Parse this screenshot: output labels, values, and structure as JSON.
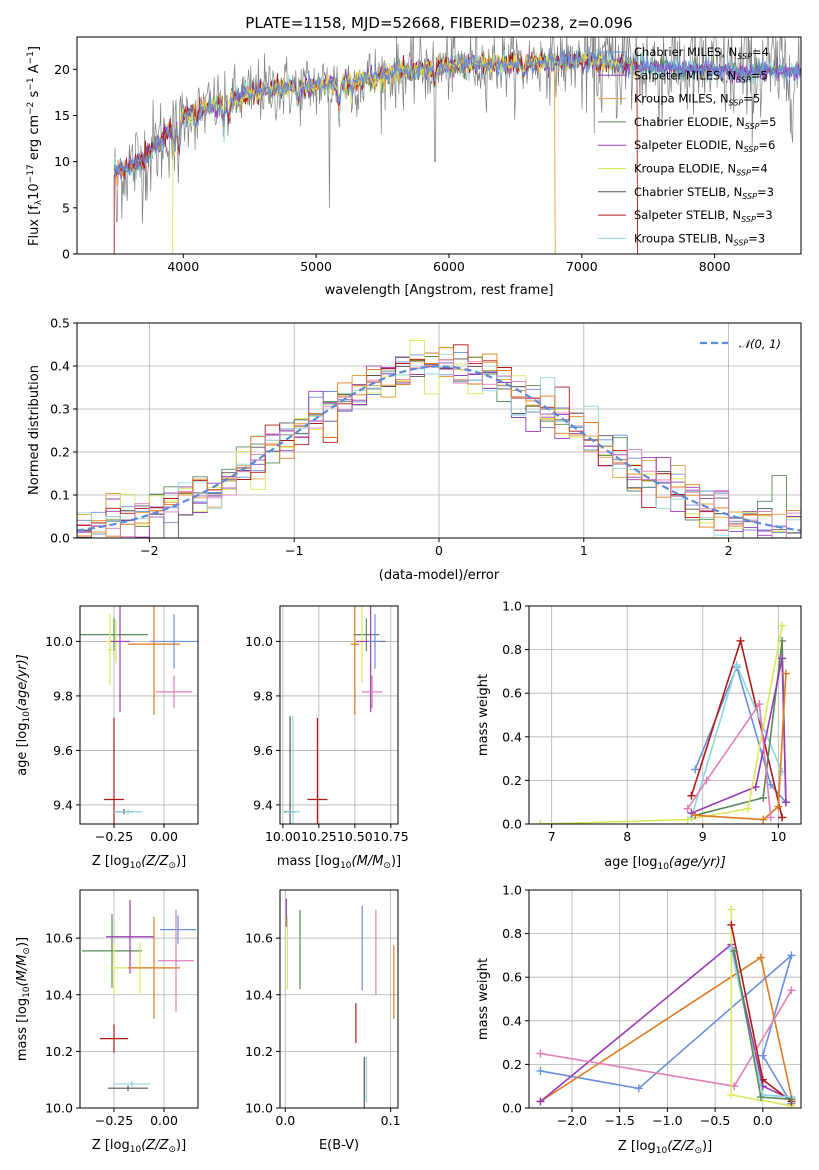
{
  "colors": {
    "chabrier_miles": "#6a8fdb",
    "salpeter_miles": "#8e44ad",
    "kroupa_miles": "#e6a23c",
    "chabrier_elodie": "#5a8a5a",
    "salpeter_elodie": "#9b3bb5",
    "kroupa_elodie": "#d8e85a",
    "chabrier_stelib": "#555555",
    "salpeter_stelib": "#b01818",
    "kroupa_stelib": "#8fd6e0",
    "orange": "#e07a1e",
    "pink": "#e07fb8",
    "model_gray": "#808080",
    "gauss_blue": "#5b8ad8"
  },
  "chart_data": [
    {
      "id": "spectrum",
      "type": "line",
      "title": "PLATE=1158, MJD=52668, FIBERID=0238, z=0.096",
      "xlabel": "wavelength [Angstrom, rest frame]",
      "ylabel": "Flux [f",
      "ylabel_sub": "λ",
      "ylabel_rest": "10",
      "ylabel_sup": "−17",
      "ylabel_tail": " erg cm",
      "ylabel_sup2": "−2",
      "ylabel_tail2": " s",
      "ylabel_sup3": "−1",
      "ylabel_tail3": " A",
      "ylabel_sup4": "−1",
      "ylabel_end": "]",
      "xlim": [
        3200,
        8650
      ],
      "ylim": [
        0,
        23.5
      ],
      "xticks": [
        4000,
        5000,
        6000,
        7000,
        8000
      ],
      "yticks": [
        0,
        5,
        10,
        15,
        20
      ],
      "grid": false,
      "legend_position": "right",
      "legend": [
        {
          "label": "Chabrier MILES, N",
          "sub": "SSP",
          "suffix": "=4",
          "color_key": "chabrier_miles"
        },
        {
          "label": "Salpeter MILES, N",
          "sub": "SSP",
          "suffix": "=5",
          "color_key": "salpeter_miles"
        },
        {
          "label": "Kroupa MILES, N",
          "sub": "SSP",
          "suffix": "=5",
          "color_key": "kroupa_miles"
        },
        {
          "label": "Chabrier ELODIE, N",
          "sub": "SSP",
          "suffix": "=5",
          "color_key": "chabrier_elodie"
        },
        {
          "label": "Salpeter ELODIE, N",
          "sub": "SSP",
          "suffix": "=6",
          "color_key": "salpeter_elodie"
        },
        {
          "label": "Kroupa ELODIE, N",
          "sub": "SSP",
          "suffix": "=4",
          "color_key": "kroupa_elodie"
        },
        {
          "label": "Chabrier STELIB, N",
          "sub": "SSP",
          "suffix": "=3",
          "color_key": "chabrier_stelib"
        },
        {
          "label": "Salpeter STELIB, N",
          "sub": "SSP",
          "suffix": "=3",
          "color_key": "salpeter_stelib"
        },
        {
          "label": "Kroupa STELIB, N",
          "sub": "SSP",
          "suffix": "=3",
          "color_key": "kroupa_stelib"
        }
      ],
      "continuum": {
        "x": [
          3480,
          3600,
          3700,
          3800,
          3900,
          4000,
          4200,
          4400,
          4600,
          4800,
          5000,
          5200,
          5400,
          5600,
          5800,
          6000,
          6200,
          6400,
          6600,
          6800,
          7000,
          7200,
          7400,
          7600,
          7800,
          8000,
          8200,
          8400,
          8650
        ],
        "y": [
          9.0,
          9.5,
          10.2,
          11.8,
          13.5,
          15.0,
          16.0,
          16.8,
          17.8,
          18.0,
          18.2,
          18.5,
          19.0,
          19.6,
          20.0,
          20.4,
          20.5,
          20.6,
          20.7,
          20.8,
          20.9,
          20.7,
          20.4,
          20.2,
          20.1,
          20.0,
          19.7,
          19.8,
          19.7
        ]
      },
      "model_ends": {
        "kroupa_elodie_start": 3920,
        "kroupa_miles_end": 6800,
        "salpeter_stelib_end": 7420,
        "stelib_start": 3480
      }
    },
    {
      "id": "residuals",
      "type": "bar",
      "xlabel": "(data-model)/error",
      "ylabel": "Normed distribution",
      "xlim": [
        -2.5,
        2.5
      ],
      "ylim": [
        0,
        0.5
      ],
      "xticks": [
        -2,
        -1,
        0,
        1,
        2
      ],
      "xticklabels": [
        "−2",
        "−1",
        "0",
        "1",
        "2"
      ],
      "yticks": [
        0.0,
        0.1,
        0.2,
        0.3,
        0.4,
        0.5
      ],
      "yticklabels": [
        "0.0",
        "0.1",
        "0.2",
        "0.3",
        "0.4",
        "0.5"
      ],
      "grid": true,
      "legend_position": "top-right",
      "legend": [
        {
          "label": "𝒩(0, 1)",
          "color_key": "gauss_blue"
        }
      ],
      "gaussian": {
        "mu": 0,
        "sigma": 1
      }
    },
    {
      "id": "age_vs_Z",
      "type": "scatter",
      "xlabel": "Z [log",
      "xlabel_sub": "10",
      "xlabel_rest": "(Z/Z",
      "xlabel_sun": "⊙",
      "xlabel_end": ")]",
      "ylabel": "age  [log",
      "ylabel_sub": "10",
      "ylabel_rest": "(age/yr)]",
      "xlim": [
        -0.42,
        0.17
      ],
      "ylim": [
        9.33,
        10.13
      ],
      "xticks": [
        -0.25,
        0.0
      ],
      "xticklabels": [
        "−0.25",
        "0.00"
      ],
      "yticks": [
        9.4,
        9.6,
        9.8,
        10.0
      ],
      "yticklabels": [
        "9.4",
        "9.6",
        "9.8",
        "10.0"
      ],
      "grid": true,
      "points": [
        {
          "x": -0.25,
          "y": 10.025,
          "xerr": 0.17,
          "yerr": 0.06,
          "color_key": "chabrier_elodie"
        },
        {
          "x": -0.24,
          "y": 10.0,
          "xerr": 0.05,
          "yerr": 0.08,
          "color_key": "kroupa_elodie"
        },
        {
          "x": -0.22,
          "y": 10.0,
          "xerr": 0.05,
          "yerr": 0.26,
          "color_key": "salpeter_elodie"
        },
        {
          "x": -0.05,
          "y": 9.99,
          "xerr": 0.13,
          "yerr": 0.26,
          "color_key": "orange"
        },
        {
          "x": 0.05,
          "y": 10.0,
          "xerr": 0.12,
          "yerr": 0.1,
          "color_key": "chabrier_miles"
        },
        {
          "x": 0.05,
          "y": 9.815,
          "xerr": 0.09,
          "yerr": 0.06,
          "color_key": "pink"
        },
        {
          "x": -0.27,
          "y": 9.97,
          "xerr": 0.01,
          "yerr": 0.13,
          "color_key": "kroupa_elodie"
        },
        {
          "x": -0.25,
          "y": 9.42,
          "xerr": 0.05,
          "yerr": 0.3,
          "color_key": "salpeter_stelib"
        },
        {
          "x": -0.2,
          "y": 9.375,
          "xerr": 0.05,
          "yerr": 0.01,
          "color_key": "chabrier_stelib"
        },
        {
          "x": -0.18,
          "y": 9.375,
          "xerr": 0.07,
          "yerr": 0.01,
          "color_key": "kroupa_stelib"
        }
      ]
    },
    {
      "id": "age_vs_mass",
      "type": "scatter",
      "xlabel": "mass [log",
      "xlabel_sub": "10",
      "xlabel_rest": "(M/M",
      "xlabel_sun": "⊙",
      "xlabel_end": ")]",
      "xlim": [
        9.98,
        10.8
      ],
      "ylim": [
        9.33,
        10.13
      ],
      "xticks": [
        10.0,
        10.25,
        10.5,
        10.75
      ],
      "xticklabels": [
        "10.00",
        "10.25",
        "10.50",
        "10.75"
      ],
      "yticks": [
        9.4,
        9.6,
        9.8,
        10.0
      ],
      "yticklabels": [
        "9.4",
        "9.6",
        "9.8",
        "10.0"
      ],
      "grid": true,
      "points": [
        {
          "x": 10.58,
          "y": 10.025,
          "xerr": 0.09,
          "yerr": 0.06,
          "color_key": "chabrier_elodie"
        },
        {
          "x": 10.55,
          "y": 10.0,
          "xerr": 0.06,
          "yerr": 0.15,
          "color_key": "kroupa_elodie"
        },
        {
          "x": 10.61,
          "y": 10.0,
          "xerr": 0.1,
          "yerr": 0.26,
          "color_key": "salpeter_elodie"
        },
        {
          "x": 10.5,
          "y": 9.99,
          "xerr": 0.03,
          "yerr": 0.26,
          "color_key": "orange"
        },
        {
          "x": 10.64,
          "y": 10.0,
          "xerr": 0.05,
          "yerr": 0.1,
          "color_key": "chabrier_miles"
        },
        {
          "x": 10.62,
          "y": 9.815,
          "xerr": 0.07,
          "yerr": 0.06,
          "color_key": "pink"
        },
        {
          "x": 10.24,
          "y": 9.42,
          "xerr": 0.07,
          "yerr": 0.3,
          "color_key": "salpeter_stelib"
        },
        {
          "x": 10.05,
          "y": 9.375,
          "xerr": 0.04,
          "yerr": 0.35,
          "color_key": "chabrier_stelib"
        },
        {
          "x": 10.07,
          "y": 9.375,
          "xerr": 0.05,
          "yerr": 0.35,
          "color_key": "kroupa_stelib"
        }
      ]
    },
    {
      "id": "massweight_vs_age",
      "type": "line",
      "xlabel": "age  [log",
      "xlabel_sub": "10",
      "xlabel_rest": "(age/yr)]",
      "ylabel": "mass weight",
      "xlim": [
        6.7,
        10.3
      ],
      "ylim": [
        0,
        1.0
      ],
      "xticks": [
        7,
        8,
        9,
        10
      ],
      "xticklabels": [
        "7",
        "8",
        "9",
        "10"
      ],
      "yticks": [
        0.0,
        0.2,
        0.4,
        0.6,
        0.8,
        1.0
      ],
      "yticklabels": [
        "0.0",
        "0.2",
        "0.4",
        "0.6",
        "0.8",
        "1.0"
      ],
      "grid": true,
      "series": [
        {
          "color_key": "chabrier_miles",
          "x": [
            8.9,
            9.45,
            9.9,
            10.1
          ],
          "y": [
            0.25,
            0.72,
            0.18,
            0.1
          ]
        },
        {
          "color_key": "salpeter_stelib",
          "x": [
            8.85,
            9.5,
            10.05
          ],
          "y": [
            0.13,
            0.84,
            0.03
          ]
        },
        {
          "color_key": "kroupa_stelib",
          "x": [
            8.85,
            9.45,
            10.05
          ],
          "y": [
            0.03,
            0.73,
            0.24
          ]
        },
        {
          "color_key": "chabrier_elodie",
          "x": [
            8.9,
            9.8,
            10.05,
            10.1
          ],
          "y": [
            0.04,
            0.12,
            0.84,
            0.1
          ]
        },
        {
          "color_key": "salpeter_elodie",
          "x": [
            8.85,
            9.7,
            10.05,
            10.1
          ],
          "y": [
            0.05,
            0.17,
            0.76,
            0.1
          ]
        },
        {
          "color_key": "kroupa_elodie",
          "x": [
            6.85,
            8.8,
            9.6,
            10.05
          ],
          "y": [
            0.0,
            0.02,
            0.07,
            0.91
          ]
        },
        {
          "color_key": "orange",
          "x": [
            8.9,
            9.8,
            10.0,
            10.1
          ],
          "y": [
            0.04,
            0.02,
            0.08,
            0.69
          ]
        },
        {
          "color_key": "pink",
          "x": [
            8.8,
            9.05,
            9.75,
            9.9
          ],
          "y": [
            0.07,
            0.2,
            0.55,
            0.03
          ]
        }
      ]
    },
    {
      "id": "mass_vs_Z",
      "type": "scatter",
      "xlabel": "Z [log",
      "xlabel_sub": "10",
      "xlabel_rest": "(Z/Z",
      "xlabel_sun": "⊙",
      "xlabel_end": ")]",
      "ylabel": "mass [log",
      "ylabel_sub": "10",
      "ylabel_rest": "(M/M",
      "ylabel_sun": "⊙",
      "ylabel_end": ")]",
      "xlim": [
        -0.42,
        0.17
      ],
      "ylim": [
        10.0,
        10.77
      ],
      "xticks": [
        -0.25,
        0.0
      ],
      "xticklabels": [
        "−0.25",
        "0.00"
      ],
      "yticks": [
        10.0,
        10.2,
        10.4,
        10.6
      ],
      "yticklabels": [
        "10.0",
        "10.2",
        "10.4",
        "10.6"
      ],
      "grid": true,
      "points": [
        {
          "x": -0.26,
          "y": 10.555,
          "xerr": 0.15,
          "yerr": 0.13,
          "color_key": "chabrier_elodie"
        },
        {
          "x": -0.17,
          "y": 10.605,
          "xerr": 0.12,
          "yerr": 0.13,
          "color_key": "salpeter_elodie"
        },
        {
          "x": -0.12,
          "y": 10.495,
          "xerr": 0.15,
          "yerr": 0.09,
          "color_key": "kroupa_elodie"
        },
        {
          "x": -0.05,
          "y": 10.495,
          "xerr": 0.13,
          "yerr": 0.18,
          "color_key": "orange"
        },
        {
          "x": 0.07,
          "y": 10.63,
          "xerr": 0.09,
          "yerr": 0.05,
          "color_key": "chabrier_miles"
        },
        {
          "x": 0.06,
          "y": 10.52,
          "xerr": 0.09,
          "yerr": 0.18,
          "color_key": "pink"
        },
        {
          "x": -0.25,
          "y": 10.49,
          "xerr": 0.0,
          "yerr": 0.09,
          "color_key": "kroupa_elodie"
        },
        {
          "x": -0.25,
          "y": 10.245,
          "xerr": 0.07,
          "yerr": 0.05,
          "color_key": "salpeter_stelib"
        },
        {
          "x": -0.18,
          "y": 10.07,
          "xerr": 0.1,
          "yerr": 0.01,
          "color_key": "chabrier_stelib"
        },
        {
          "x": -0.16,
          "y": 10.085,
          "xerr": 0.09,
          "yerr": 0.01,
          "color_key": "kroupa_stelib"
        }
      ]
    },
    {
      "id": "mass_vs_ebv",
      "type": "scatter",
      "xlabel": "E(B-V)",
      "xlim": [
        -0.005,
        0.107
      ],
      "ylim": [
        10.0,
        10.77
      ],
      "xticks": [
        0.0,
        0.1
      ],
      "xticklabels": [
        "0.0",
        "0.1"
      ],
      "yticks": [
        10.0,
        10.2,
        10.4,
        10.6
      ],
      "yticklabels": [
        "10.0",
        "10.2",
        "10.4",
        "10.6"
      ],
      "grid": true,
      "points": [
        {
          "x": 0.001,
          "y": 10.69,
          "xerr": 0,
          "yerr": 0.05,
          "color_key": "salpeter_elodie"
        },
        {
          "x": 0.002,
          "y": 10.55,
          "xerr": 0,
          "yerr": 0.13,
          "color_key": "kroupa_elodie"
        },
        {
          "x": 0.014,
          "y": 10.56,
          "xerr": 0,
          "yerr": 0.14,
          "color_key": "chabrier_elodie"
        },
        {
          "x": 0.073,
          "y": 10.565,
          "xerr": 0,
          "yerr": 0.15,
          "color_key": "chabrier_miles"
        },
        {
          "x": 0.086,
          "y": 10.55,
          "xerr": 0,
          "yerr": 0.15,
          "color_key": "pink"
        },
        {
          "x": 0.103,
          "y": 10.445,
          "xerr": 0,
          "yerr": 0.13,
          "color_key": "orange"
        },
        {
          "x": 0.067,
          "y": 10.3,
          "xerr": 0,
          "yerr": 0.07,
          "color_key": "salpeter_stelib"
        },
        {
          "x": 0.075,
          "y": 10.08,
          "xerr": 0,
          "yerr": 0.1,
          "color_key": "chabrier_stelib"
        },
        {
          "x": 0.077,
          "y": 10.1,
          "xerr": 0,
          "yerr": 0.08,
          "color_key": "kroupa_stelib"
        }
      ]
    },
    {
      "id": "massweight_vs_Z",
      "type": "line",
      "xlabel": "Z [log",
      "xlabel_sub": "10",
      "xlabel_rest": "(Z/Z",
      "xlabel_sun": "⊙",
      "xlabel_end": ")]",
      "ylabel": "mass weight",
      "xlim": [
        -2.45,
        0.4
      ],
      "ylim": [
        0,
        1.0
      ],
      "xticks": [
        -2.0,
        -1.5,
        -1.0,
        -0.5,
        0.0
      ],
      "xticklabels": [
        "−2.0",
        "−1.5",
        "−1.0",
        "−0.5",
        "0.0"
      ],
      "yticks": [
        0.0,
        0.2,
        0.4,
        0.6,
        0.8,
        1.0
      ],
      "yticklabels": [
        "0.0",
        "0.2",
        "0.4",
        "0.6",
        "0.8",
        "1.0"
      ],
      "grid": true,
      "series": [
        {
          "color_key": "chabrier_miles",
          "x": [
            -2.33,
            -1.3,
            0.3,
            0.0,
            0.3
          ],
          "y": [
            0.17,
            0.09,
            0.7,
            0.24,
            0.02
          ]
        },
        {
          "color_key": "orange",
          "x": [
            -2.33,
            -0.02,
            0.3
          ],
          "y": [
            0.03,
            0.69,
            0.05
          ]
        },
        {
          "color_key": "salpeter_elodie",
          "x": [
            -2.33,
            -0.33,
            0.0,
            0.3
          ],
          "y": [
            0.03,
            0.75,
            0.1,
            0.04
          ]
        },
        {
          "color_key": "pink",
          "x": [
            -2.33,
            -0.3,
            0.3
          ],
          "y": [
            0.25,
            0.1,
            0.54
          ]
        },
        {
          "color_key": "kroupa_elodie",
          "x": [
            -0.33,
            -0.33,
            0.3,
            0.3
          ],
          "y": [
            0.91,
            0.06,
            0.01,
            0.04
          ]
        },
        {
          "color_key": "salpeter_stelib",
          "x": [
            -0.33,
            0.0,
            0.3
          ],
          "y": [
            0.84,
            0.13,
            0.03
          ]
        },
        {
          "color_key": "kroupa_stelib",
          "x": [
            -0.33,
            0.0,
            0.3
          ],
          "y": [
            0.73,
            0.06,
            0.05
          ]
        },
        {
          "color_key": "chabrier_elodie",
          "x": [
            -0.3,
            -0.02,
            0.3
          ],
          "y": [
            0.72,
            0.05,
            0.04
          ]
        }
      ]
    }
  ]
}
